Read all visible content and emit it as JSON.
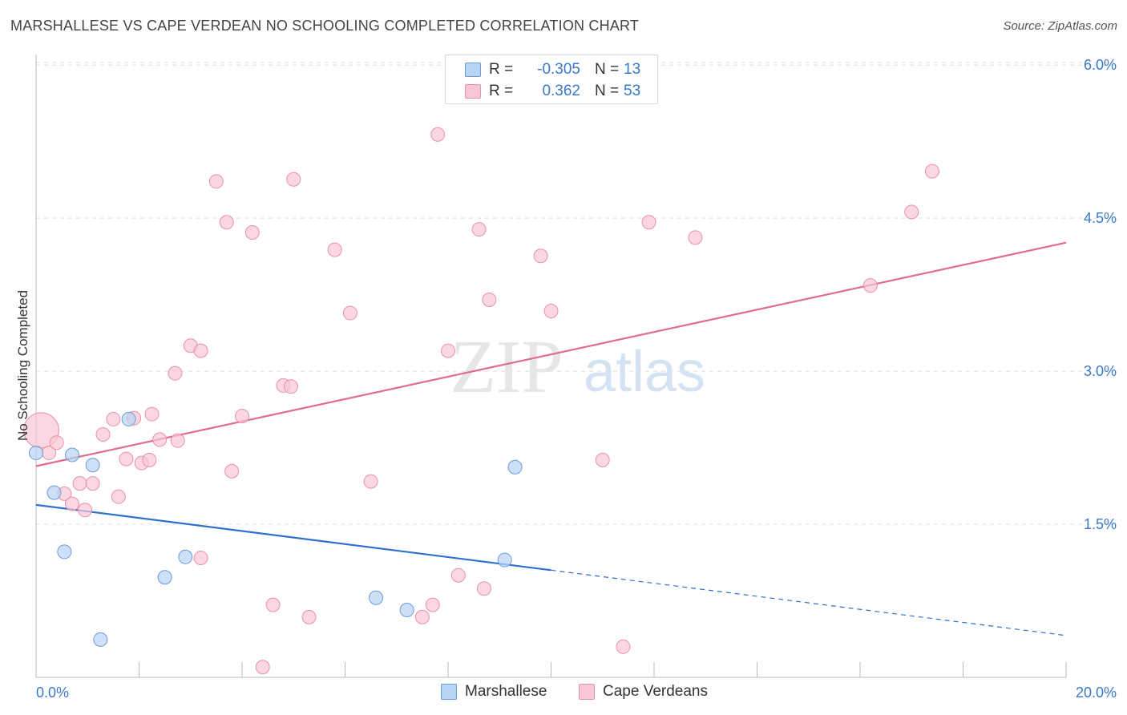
{
  "title": "MARSHALLESE VS CAPE VERDEAN NO SCHOOLING COMPLETED CORRELATION CHART",
  "source": "Source: ZipAtlas.com",
  "watermark": {
    "zip": "ZIP",
    "atlas": "atlas"
  },
  "colors": {
    "blue_fill": "#b8d3f3",
    "blue_stroke": "#6c9bd8",
    "blue_line": "#2f6fcf",
    "pink_fill": "#f8c6d4",
    "pink_stroke": "#e891ab",
    "pink_line": "#e06c92",
    "axis_text": "#3a78c9",
    "grid": "#dddddd"
  },
  "legend": {
    "rows": [
      {
        "r_label": "R =",
        "r_value": "-0.305",
        "n_label": "N =",
        "n_value": "13"
      },
      {
        "r_label": "R =",
        "r_value": "0.362",
        "n_label": "N =",
        "n_value": "53"
      }
    ]
  },
  "bottom_legend": {
    "marshallese": "Marshallese",
    "cape_verdeans": "Cape Verdeans"
  },
  "chart_data": {
    "type": "scatter",
    "title": "MARSHALLESE VS CAPE VERDEAN NO SCHOOLING COMPLETED CORRELATION CHART",
    "xlabel": "",
    "ylabel": "No Schooling Completed",
    "xlim": [
      0,
      20
    ],
    "ylim": [
      0,
      6.2
    ],
    "x_tick_labels": [
      "0.0%",
      "20.0%"
    ],
    "y_ticks": [
      1.5,
      3.0,
      4.5,
      6.0
    ],
    "y_tick_labels": [
      "1.5%",
      "3.0%",
      "4.5%",
      "6.0%"
    ],
    "grid": true,
    "series": [
      {
        "name": "Marshallese",
        "r": -0.305,
        "n": 13,
        "points": [
          [
            0.0,
            2.2
          ],
          [
            0.35,
            1.81
          ],
          [
            0.55,
            1.23
          ],
          [
            0.7,
            2.18
          ],
          [
            1.1,
            2.08
          ],
          [
            1.25,
            0.37
          ],
          [
            1.8,
            2.53
          ],
          [
            2.5,
            0.98
          ],
          [
            2.9,
            1.18
          ],
          [
            6.6,
            0.78
          ],
          [
            7.2,
            0.66
          ],
          [
            9.1,
            1.15
          ],
          [
            9.3,
            2.06
          ]
        ],
        "trend": {
          "x0": 0.0,
          "y0": 1.69,
          "x1": 10.0,
          "y1": 1.05,
          "dash_to_x": 20.0,
          "dash_to_y": 0.41
        }
      },
      {
        "name": "Cape Verdeans",
        "r": 0.362,
        "n": 53,
        "points": [
          [
            0.1,
            2.42
          ],
          [
            0.25,
            2.2
          ],
          [
            0.4,
            2.3
          ],
          [
            0.55,
            1.8
          ],
          [
            0.7,
            1.7
          ],
          [
            0.85,
            1.9
          ],
          [
            0.95,
            1.64
          ],
          [
            1.1,
            1.9
          ],
          [
            1.3,
            2.38
          ],
          [
            1.5,
            2.53
          ],
          [
            1.6,
            1.77
          ],
          [
            1.75,
            2.14
          ],
          [
            1.9,
            2.54
          ],
          [
            2.05,
            2.1
          ],
          [
            2.2,
            2.13
          ],
          [
            2.25,
            2.58
          ],
          [
            2.4,
            2.33
          ],
          [
            2.7,
            2.98
          ],
          [
            2.75,
            2.32
          ],
          [
            3.0,
            3.25
          ],
          [
            3.2,
            3.2
          ],
          [
            3.2,
            1.17
          ],
          [
            3.5,
            4.86
          ],
          [
            3.7,
            4.46
          ],
          [
            3.8,
            2.02
          ],
          [
            4.0,
            2.56
          ],
          [
            4.2,
            4.36
          ],
          [
            4.4,
            0.1
          ],
          [
            4.6,
            0.71
          ],
          [
            4.8,
            2.86
          ],
          [
            4.95,
            2.85
          ],
          [
            5.0,
            4.88
          ],
          [
            5.3,
            0.59
          ],
          [
            5.8,
            4.19
          ],
          [
            6.1,
            3.57
          ],
          [
            6.5,
            1.92
          ],
          [
            7.5,
            0.59
          ],
          [
            7.7,
            0.71
          ],
          [
            7.8,
            5.32
          ],
          [
            8.0,
            3.2
          ],
          [
            8.2,
            1.0
          ],
          [
            8.6,
            4.39
          ],
          [
            8.7,
            0.87
          ],
          [
            8.8,
            3.7
          ],
          [
            9.8,
            4.13
          ],
          [
            10.0,
            3.59
          ],
          [
            11.0,
            2.13
          ],
          [
            11.4,
            0.3
          ],
          [
            11.9,
            4.46
          ],
          [
            12.8,
            4.31
          ],
          [
            16.2,
            3.84
          ],
          [
            17.0,
            4.56
          ],
          [
            17.4,
            4.96
          ]
        ],
        "trend": {
          "x0": 0.0,
          "y0": 2.07,
          "x1": 20.0,
          "y1": 4.26
        }
      }
    ]
  }
}
